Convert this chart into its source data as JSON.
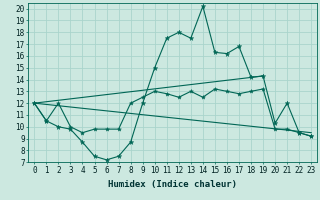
{
  "xlabel": "Humidex (Indice chaleur)",
  "bg_color": "#cce8e0",
  "line_color": "#006655",
  "grid_color": "#aad4cc",
  "xlim": [
    -0.5,
    23.5
  ],
  "ylim": [
    7,
    20.5
  ],
  "yticks": [
    7,
    8,
    9,
    10,
    11,
    12,
    13,
    14,
    15,
    16,
    17,
    18,
    19,
    20
  ],
  "xticks": [
    0,
    1,
    2,
    3,
    4,
    5,
    6,
    7,
    8,
    9,
    10,
    11,
    12,
    13,
    14,
    15,
    16,
    17,
    18,
    19,
    20,
    21,
    22,
    23
  ],
  "line1_x": [
    0,
    1,
    2,
    3,
    4,
    5,
    6,
    7,
    8,
    9,
    10,
    11,
    12,
    13,
    14,
    15,
    16,
    17,
    18,
    19,
    20,
    21,
    22,
    23
  ],
  "line1_y": [
    12,
    10.5,
    10,
    9.8,
    8.7,
    7.5,
    7.2,
    7.5,
    8.7,
    12.0,
    15.0,
    17.5,
    18.0,
    17.5,
    20.2,
    16.3,
    16.2,
    16.8,
    14.2,
    14.3,
    10.3,
    12.0,
    9.5,
    9.2
  ],
  "line2_x": [
    0,
    1,
    2,
    3,
    4,
    5,
    6,
    7,
    8,
    9,
    10,
    11,
    12,
    13,
    14,
    15,
    16,
    17,
    18,
    19,
    20,
    21,
    22,
    23
  ],
  "line2_y": [
    12,
    10.5,
    12.0,
    10.0,
    9.5,
    9.8,
    9.8,
    9.8,
    12.0,
    12.5,
    13.0,
    12.8,
    12.5,
    13.0,
    12.5,
    13.2,
    13.0,
    12.8,
    13.0,
    13.2,
    9.8,
    9.8,
    9.5,
    9.2
  ],
  "line3_x": [
    0,
    23
  ],
  "line3_y": [
    12,
    9.5
  ],
  "line4_x": [
    0,
    19
  ],
  "line4_y": [
    12,
    14.3
  ],
  "tick_fontsize": 5.5,
  "xlabel_fontsize": 6.5
}
